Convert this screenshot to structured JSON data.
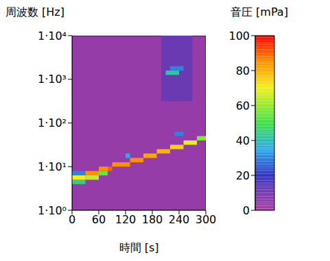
{
  "chart_data": {
    "type": "heatmap",
    "x_label": "時間 [s]",
    "y_label": "周波数 [Hz]",
    "xlim": [
      0,
      300
    ],
    "xticks": [
      0,
      60,
      120,
      180,
      240,
      300
    ],
    "ylim": [
      1,
      10000
    ],
    "yticks": [
      {
        "value": 1,
        "label": "1·10⁰"
      },
      {
        "value": 10,
        "label": "1·10¹"
      },
      {
        "value": 100,
        "label": "1·10²"
      },
      {
        "value": 1000,
        "label": "1·10³"
      },
      {
        "value": 10000,
        "label": "1·10⁴"
      }
    ],
    "log": "y",
    "grid": false,
    "background": 4,
    "cells": [
      [
        0,
        30,
        3.98,
        5.01,
        45
      ],
      [
        0,
        30,
        5.01,
        6.31,
        70
      ],
      [
        0,
        30,
        6.31,
        7.94,
        30
      ],
      [
        30,
        60,
        5.01,
        6.31,
        65
      ],
      [
        30,
        60,
        6.31,
        7.94,
        85
      ],
      [
        60,
        80,
        6.31,
        7.94,
        55
      ],
      [
        60,
        80,
        7.94,
        10,
        85
      ],
      [
        80,
        90,
        7.94,
        10,
        90
      ],
      [
        90,
        130,
        10,
        12.6,
        85
      ],
      [
        130,
        160,
        12.6,
        15.8,
        85
      ],
      [
        160,
        190,
        15.8,
        20,
        82
      ],
      [
        190,
        220,
        20,
        25.1,
        80
      ],
      [
        220,
        250,
        25.1,
        31.6,
        75
      ],
      [
        250,
        280,
        31.6,
        39.8,
        68
      ],
      [
        280,
        300,
        39.8,
        50.1,
        58
      ],
      [
        120,
        130,
        15.8,
        20,
        35
      ],
      [
        230,
        250,
        50.1,
        63.1,
        30
      ],
      [
        200,
        270,
        316,
        10000,
        12
      ],
      [
        210,
        240,
        1260,
        1580,
        42
      ],
      [
        220,
        250,
        1580,
        2000,
        30
      ]
    ],
    "colorbar": {
      "label": "音圧 [mPa]",
      "range": [
        0,
        100
      ],
      "ticks": [
        0,
        20,
        40,
        60,
        80,
        100
      ]
    }
  }
}
